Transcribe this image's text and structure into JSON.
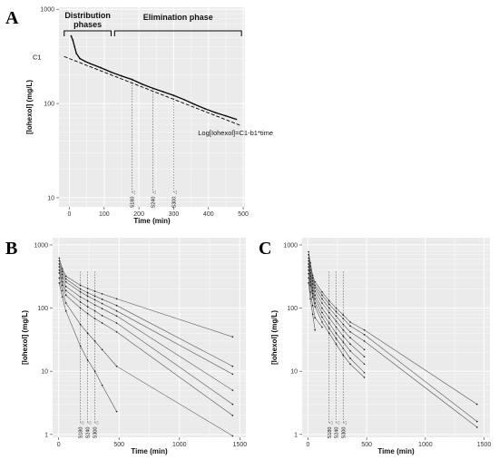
{
  "figure": {
    "panel_letters": [
      "A",
      "B",
      "C"
    ],
    "colors": {
      "panel_bg": "#ebebeb",
      "grid": "#ffffff",
      "line": "#000000",
      "series": "#555555"
    }
  },
  "chart_data": [
    {
      "id": "A",
      "type": "line",
      "xlabel": "Time (min)",
      "ylabel": "[Iohexol] (mg/L)",
      "y_scale": "log",
      "xlim": [
        -30,
        505
      ],
      "ylim": [
        8,
        1050
      ],
      "x_ticks": [
        0,
        100,
        200,
        300,
        400,
        500
      ],
      "y_ticks": [
        10,
        100,
        1000
      ],
      "grid": true,
      "phases": [
        {
          "label": "Distribution phases",
          "x_start": -15,
          "x_end": 120
        },
        {
          "label": "Elimination phase",
          "x_start": 130,
          "x_end": 495
        }
      ],
      "annotations": [
        "C1",
        "Log[Iohexol]=C1-b1*time"
      ],
      "series": [
        {
          "style": "solid",
          "x": [
            5,
            10,
            15,
            20,
            30,
            45,
            60,
            90,
            120,
            150,
            180,
            210,
            240,
            270,
            300,
            330,
            360,
            390,
            420,
            450,
            480
          ],
          "y": [
            520,
            470,
            400,
            340,
            300,
            280,
            265,
            240,
            215,
            196,
            180,
            160,
            145,
            133,
            122,
            110,
            98,
            88,
            80,
            74,
            68
          ]
        },
        {
          "style": "dashed",
          "x": [
            -15,
            490
          ],
          "y": [
            315,
            59
          ]
        }
      ],
      "sample_markers": [
        {
          "label": "S180",
          "x": 180,
          "y": 180
        },
        {
          "label": "S240",
          "x": 240,
          "y": 145
        },
        {
          "label": "S300",
          "x": 300,
          "y": 122
        }
      ]
    },
    {
      "id": "B",
      "type": "line",
      "xlabel": "Time (min)",
      "ylabel": "[Iohexol] (mg/L)",
      "y_scale": "log",
      "xlim": [
        -50,
        1550
      ],
      "ylim": [
        0.9,
        1300
      ],
      "x_ticks": [
        0,
        500,
        1000,
        1500
      ],
      "y_ticks": [
        1,
        10,
        100,
        1000
      ],
      "grid": true,
      "sample_markers": [
        {
          "label": "S180",
          "x": 180
        },
        {
          "label": "S240",
          "x": 240
        },
        {
          "label": "S300",
          "x": 300
        }
      ],
      "series": [
        {
          "x": [
            5,
            30,
            60,
            180,
            240,
            300,
            360,
            480,
            1440
          ],
          "y": [
            620,
            420,
            320,
            230,
            205,
            185,
            168,
            140,
            35
          ]
        },
        {
          "x": [
            5,
            30,
            60,
            180,
            240,
            300,
            360,
            480,
            1440
          ],
          "y": [
            560,
            380,
            290,
            200,
            175,
            155,
            138,
            110,
            12
          ]
        },
        {
          "x": [
            5,
            30,
            60,
            180,
            240,
            300,
            360,
            480,
            1440
          ],
          "y": [
            500,
            340,
            260,
            180,
            155,
            135,
            118,
            90,
            9
          ]
        },
        {
          "x": [
            5,
            30,
            60,
            180,
            240,
            300,
            360,
            480,
            1440
          ],
          "y": [
            450,
            300,
            220,
            150,
            130,
            112,
            98,
            75,
            5
          ]
        },
        {
          "x": [
            5,
            30,
            60,
            180,
            240,
            300,
            360,
            480,
            1440
          ],
          "y": [
            400,
            260,
            190,
            125,
            105,
            90,
            76,
            58,
            3
          ]
        },
        {
          "x": [
            5,
            30,
            60,
            180,
            240,
            300,
            360,
            480,
            1440
          ],
          "y": [
            360,
            230,
            160,
            100,
            82,
            68,
            58,
            42,
            2
          ]
        },
        {
          "x": [
            5,
            30,
            60,
            180,
            240,
            300,
            360,
            480,
            1440
          ],
          "y": [
            300,
            190,
            120,
            55,
            40,
            30,
            22,
            12,
            0.95
          ]
        },
        {
          "x": [
            5,
            30,
            60,
            180,
            240,
            300,
            360,
            480
          ],
          "y": [
            250,
            150,
            90,
            25,
            15,
            10,
            6,
            2.3
          ]
        }
      ]
    },
    {
      "id": "C",
      "type": "line",
      "xlabel": "Time (min)",
      "ylabel": "[Iohexol] (mg/L)",
      "y_scale": "log",
      "xlim": [
        -50,
        1550
      ],
      "ylim": [
        0.9,
        1300
      ],
      "x_ticks": [
        0,
        500,
        1000,
        1500
      ],
      "y_ticks": [
        1,
        10,
        100,
        1000
      ],
      "grid": true,
      "sample_markers": [
        {
          "label": "S180",
          "x": 180
        },
        {
          "label": "S240",
          "x": 240
        },
        {
          "label": "S300",
          "x": 300
        }
      ],
      "series": [
        {
          "x": [
            5,
            20,
            40,
            60,
            120,
            180,
            240,
            300,
            360,
            480,
            1440
          ],
          "y": [
            780,
            520,
            330,
            260,
            180,
            130,
            100,
            78,
            60,
            45,
            3
          ]
        },
        {
          "x": [
            5,
            20,
            40,
            60,
            120,
            180,
            240,
            300,
            360,
            480,
            1440
          ],
          "y": [
            700,
            460,
            300,
            230,
            160,
            115,
            88,
            68,
            52,
            38,
            1.6
          ]
        },
        {
          "x": [
            5,
            20,
            40,
            60,
            120,
            180,
            240,
            300,
            360,
            480,
            1440
          ],
          "y": [
            620,
            400,
            270,
            210,
            140,
            100,
            75,
            55,
            42,
            30,
            1.3
          ]
        },
        {
          "x": [
            5,
            20,
            40,
            60,
            120,
            180,
            240,
            300,
            360,
            480
          ],
          "y": [
            560,
            360,
            240,
            185,
            120,
            85,
            62,
            45,
            34,
            22
          ]
        },
        {
          "x": [
            5,
            20,
            40,
            60,
            120,
            180,
            240,
            300,
            360,
            480
          ],
          "y": [
            500,
            320,
            210,
            160,
            100,
            70,
            50,
            36,
            27,
            17
          ]
        },
        {
          "x": [
            5,
            20,
            40,
            60,
            120,
            180,
            240,
            300,
            360,
            480
          ],
          "y": [
            450,
            290,
            190,
            140,
            85,
            58,
            40,
            29,
            21,
            13
          ]
        },
        {
          "x": [
            5,
            20,
            40,
            60,
            120,
            180,
            240,
            300,
            360,
            480
          ],
          "y": [
            400,
            260,
            170,
            120,
            72,
            48,
            33,
            23,
            16,
            9.5
          ]
        },
        {
          "x": [
            5,
            20,
            40,
            60,
            120,
            180,
            240,
            300,
            360,
            480
          ],
          "y": [
            350,
            230,
            150,
            105,
            60,
            40,
            27,
            18,
            13,
            8
          ]
        },
        {
          "x": [
            5,
            20,
            40,
            60,
            120
          ],
          "y": [
            300,
            180,
            110,
            70,
            50
          ]
        },
        {
          "x": [
            5,
            20,
            40,
            60
          ],
          "y": [
            250,
            140,
            80,
            45
          ]
        }
      ]
    }
  ]
}
